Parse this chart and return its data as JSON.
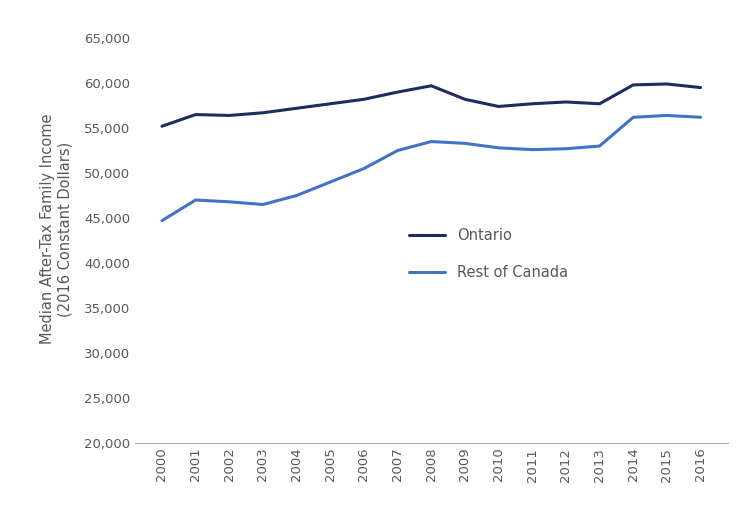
{
  "years": [
    2000,
    2001,
    2002,
    2003,
    2004,
    2005,
    2006,
    2007,
    2008,
    2009,
    2010,
    2011,
    2012,
    2013,
    2014,
    2015,
    2016
  ],
  "ontario": [
    55200,
    56500,
    56400,
    56700,
    57200,
    57700,
    58200,
    59000,
    59700,
    58200,
    57400,
    57700,
    57900,
    57700,
    59800,
    59900,
    59500
  ],
  "rest_of_canada": [
    44700,
    47000,
    46800,
    46500,
    47500,
    49000,
    50500,
    52500,
    53500,
    53300,
    52800,
    52600,
    52700,
    53000,
    56200,
    56400,
    56200
  ],
  "ontario_color": "#1e2d5e",
  "canada_color": "#4472C4",
  "ontario_label": "Ontario",
  "canada_label": "Rest of Canada",
  "ylabel_line1": "Median After-Tax Family Income",
  "ylabel_line2": "(2016 Constant Dollars)",
  "ylim": [
    20000,
    67500
  ],
  "yticks": [
    20000,
    25000,
    30000,
    35000,
    40000,
    45000,
    50000,
    55000,
    60000,
    65000
  ],
  "line_width": 2.2,
  "background_color": "#ffffff",
  "tick_color": "#595959",
  "legend_fontsize": 10.5,
  "tick_fontsize": 9.5,
  "ylabel_fontsize": 10.5
}
